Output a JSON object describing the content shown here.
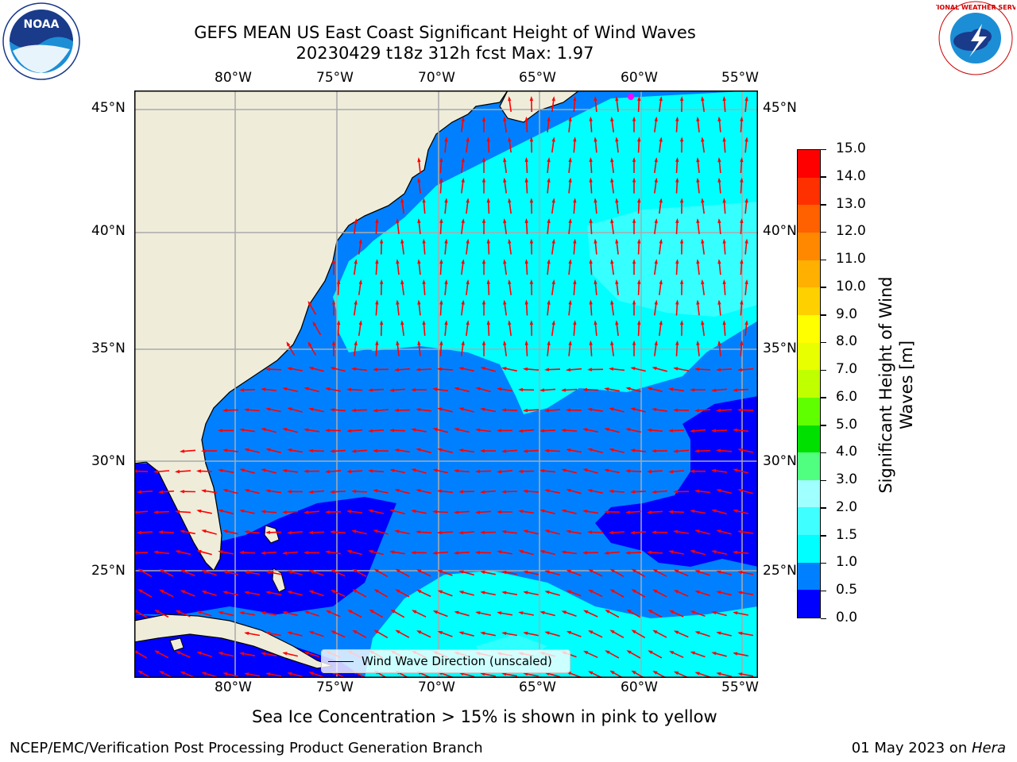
{
  "header": {
    "title_line1": "GEFS MEAN US East Coast Significant Height of Wind Waves",
    "title_line2": "20230429 t18z 312h fcst   Max: 1.97",
    "left_logo": "NOAA",
    "right_logo_text": "NATIONAL WEATHER SERVICE"
  },
  "map": {
    "lon_labels": [
      "80°W",
      "75°W",
      "70°W",
      "65°W",
      "60°W",
      "55°W"
    ],
    "lat_labels": [
      "45°N",
      "40°N",
      "35°N",
      "30°N",
      "25°N"
    ],
    "legend_label": "Wind Wave Direction (unscaled)",
    "land_color": "#efedda",
    "arrow_color": "#ff0000"
  },
  "colorbar": {
    "label_line1": "Significant Height of Wind",
    "label_line2": "Waves [m]",
    "ticks": [
      "0.0",
      "0.5",
      "1.0",
      "1.5",
      "2.0",
      "3.0",
      "4.0",
      "5.0",
      "6.0",
      "7.0",
      "8.0",
      "9.0",
      "10.0",
      "11.0",
      "12.0",
      "13.0",
      "14.0",
      "15.0"
    ],
    "colors": [
      "#0000ff",
      "#0080ff",
      "#00ffff",
      "#40ffff",
      "#a0ffff",
      "#50ff80",
      "#00e000",
      "#60ff00",
      "#c0ff00",
      "#e8ff00",
      "#ffff00",
      "#ffd000",
      "#ffb000",
      "#ff8800",
      "#ff6000",
      "#ff3000",
      "#ff0000"
    ]
  },
  "footer": {
    "note": "Sea Ice Concentration > 15% is shown in pink to yellow",
    "left": "NCEP/EMC/Verification Post Processing Product Generation Branch",
    "right_prefix": "01 May 2023 on ",
    "right_machine": "Hera"
  }
}
